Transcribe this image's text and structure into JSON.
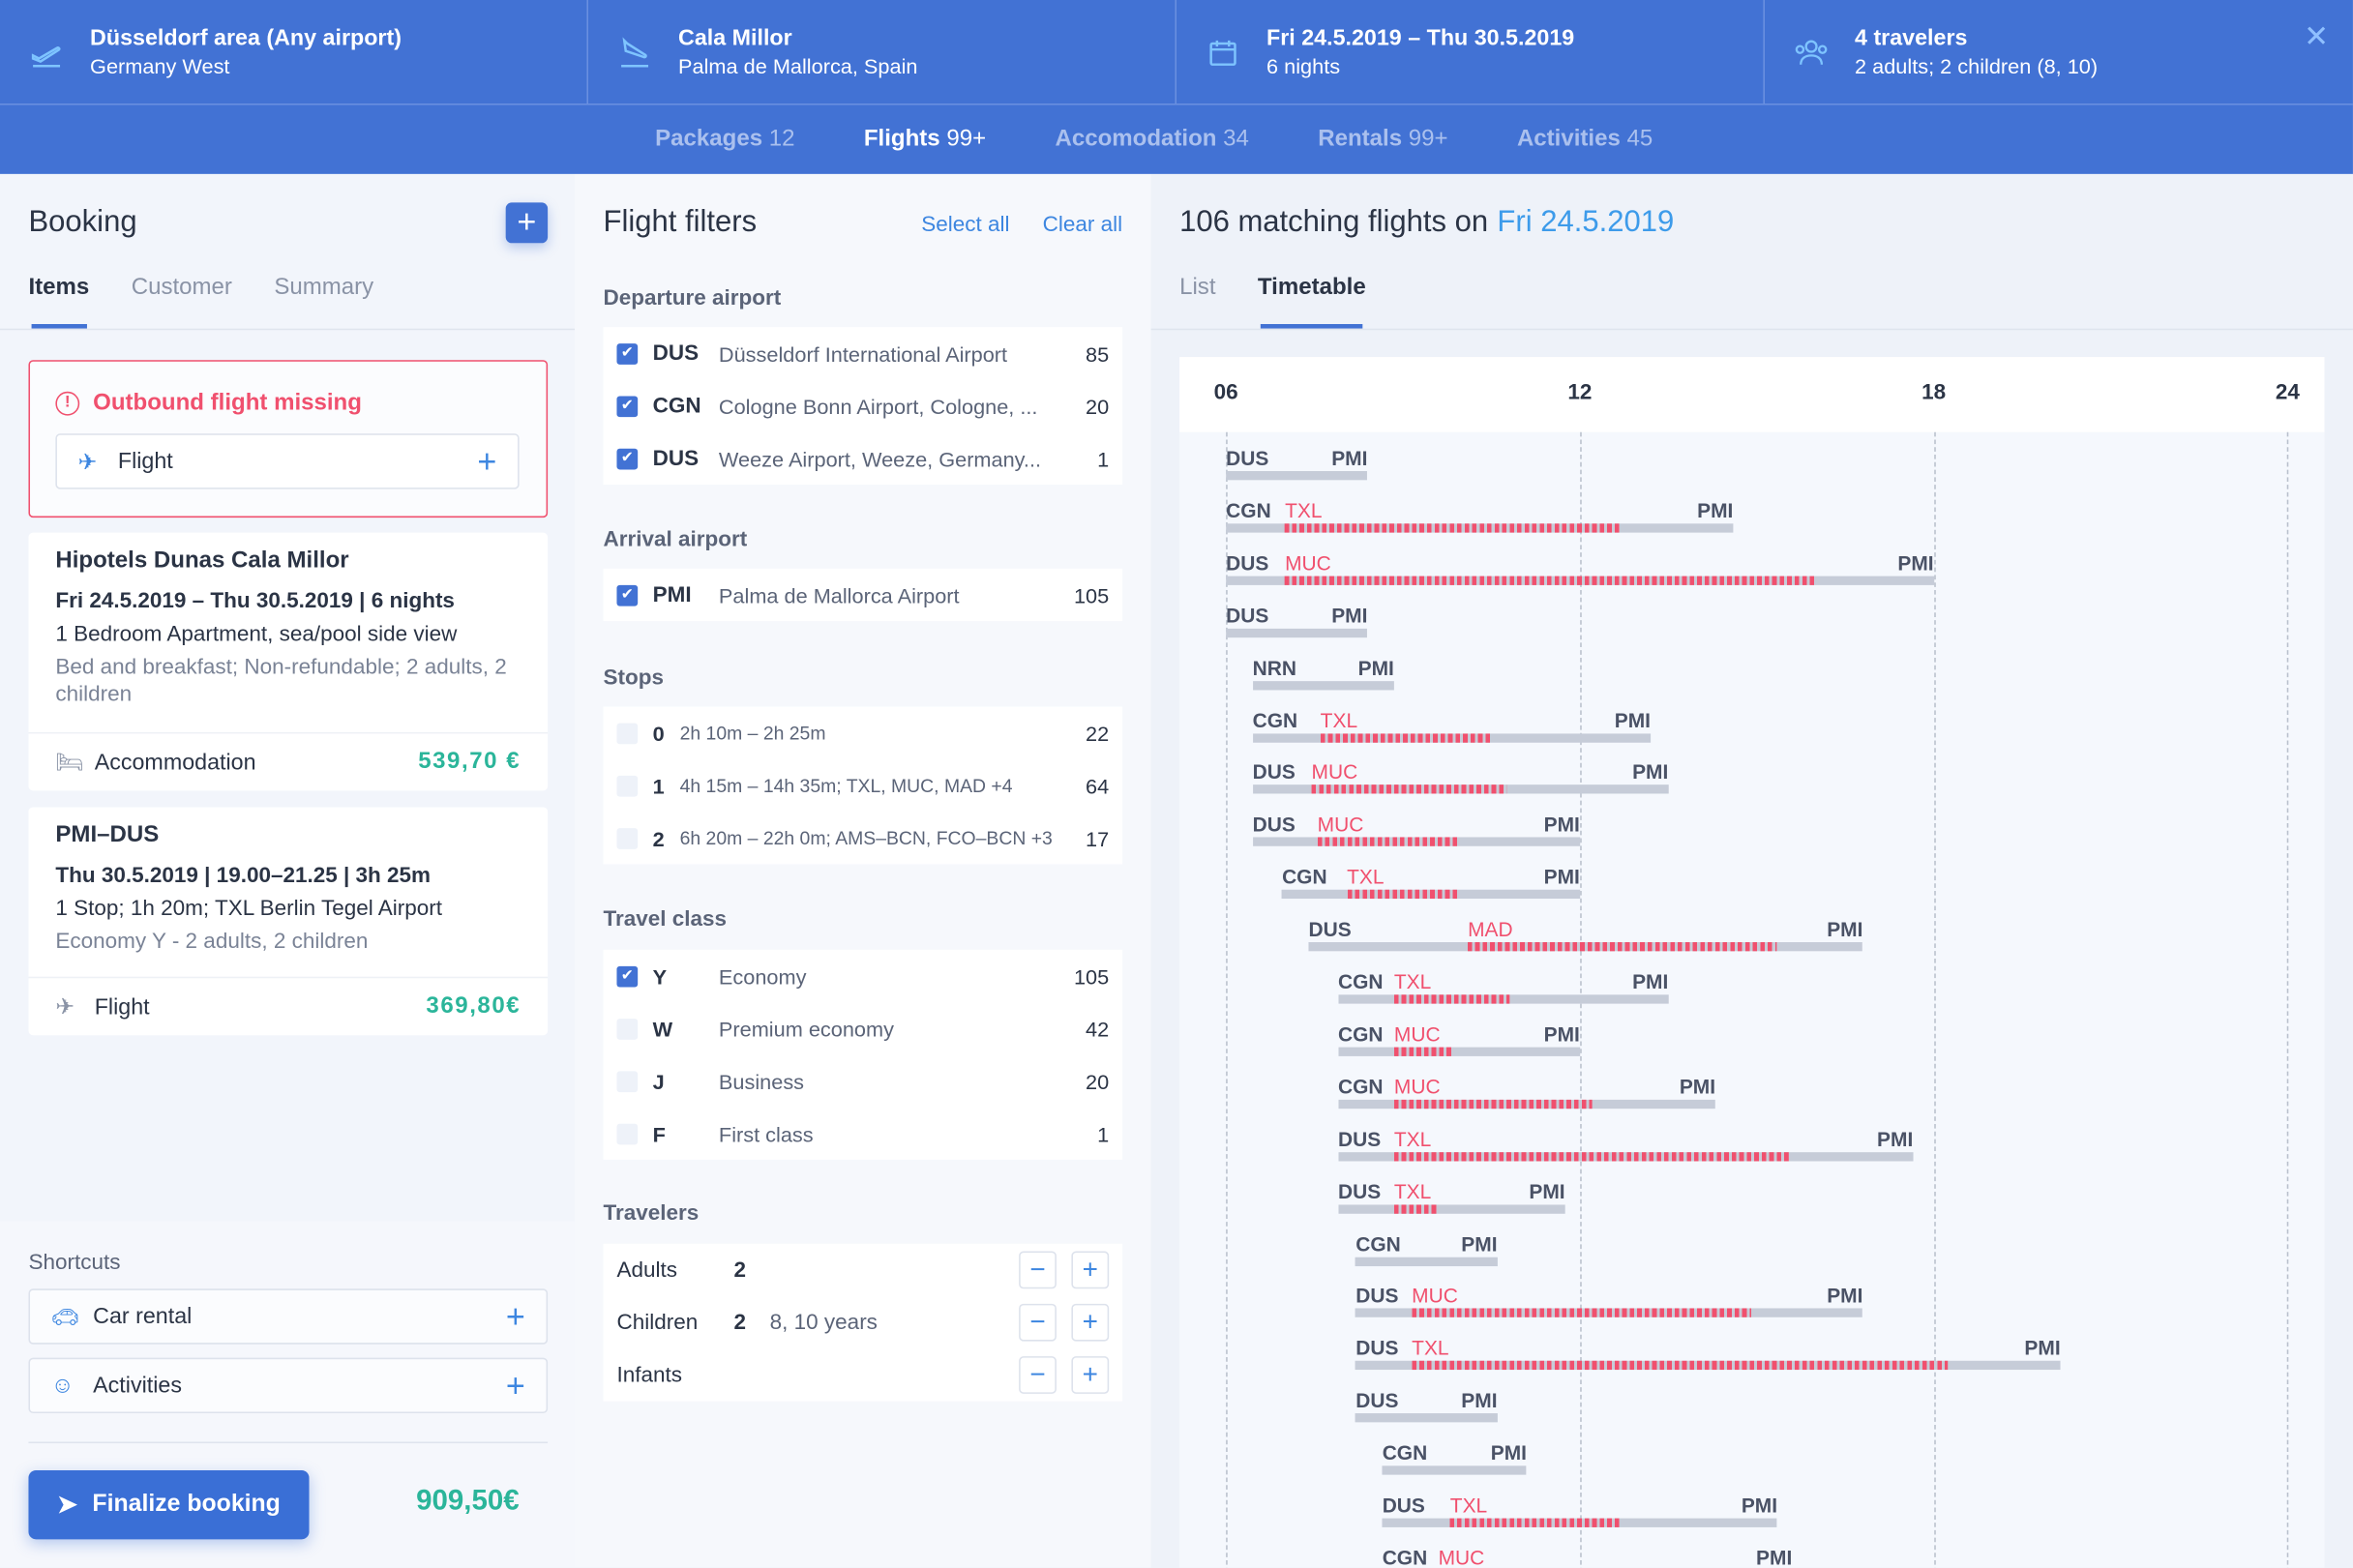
{
  "header": {
    "cells": [
      {
        "title": "Düsseldorf area (Any airport)",
        "subtitle": "Germany West",
        "icon": "takeoff-icon"
      },
      {
        "title": "Cala Millor",
        "subtitle": "Palma de Mallorca, Spain",
        "icon": "landing-icon"
      },
      {
        "title": "Fri 24.5.2019 – Thu 30.5.2019",
        "subtitle": "6 nights",
        "icon": "calendar-icon"
      },
      {
        "title": "4 travelers",
        "subtitle": "2 adults; 2 children (8, 10)",
        "icon": "people-icon"
      }
    ],
    "close": "✕",
    "nav": [
      {
        "label": "Packages",
        "count": "12"
      },
      {
        "label": "Flights",
        "count": "99+"
      },
      {
        "label": "Accomodation",
        "count": "34"
      },
      {
        "label": "Rentals",
        "count": "99+"
      },
      {
        "label": "Activities",
        "count": "45"
      }
    ]
  },
  "booking": {
    "title": "Booking",
    "add": "+",
    "tabs": [
      "Items",
      "Customer",
      "Summary"
    ],
    "alert": {
      "text": "Outbound flight missing",
      "item": "Flight",
      "plus": "+"
    },
    "hotel": {
      "name": "Hipotels Dunas Cala Millor",
      "dates": "Fri 24.5.2019 – Thu 30.5.2019 | 6 nights",
      "room": "1 Bedroom Apartment, sea/pool side view",
      "details": "Bed and breakfast; Non-refundable; 2 adults, 2 children",
      "type": "Accommodation",
      "price": "539,70 €"
    },
    "flight": {
      "route": "PMI–DUS",
      "dates": "Thu 30.5.2019 | 19.00–21.25 | 3h 25m",
      "stops": "1 Stop; 1h 20m; TXL Berlin Tegel Airport",
      "details": "Economy Y - 2 adults, 2 children",
      "type": "Flight",
      "price": "369,80€"
    },
    "shortcuts": {
      "label": "Shortcuts",
      "items": [
        "Car rental",
        "Activities"
      ],
      "plus": "+"
    },
    "finalize": "Finalize booking",
    "total": "909,50€"
  },
  "filters": {
    "title": "Flight filters",
    "select_all": "Select all",
    "clear_all": "Clear all",
    "departure": {
      "label": "Departure airport",
      "items": [
        {
          "code": "DUS",
          "name": "Düsseldorf International Airport",
          "count": "85",
          "checked": true
        },
        {
          "code": "CGN",
          "name": "Cologne Bonn Airport, Cologne, ...",
          "count": "20",
          "checked": true
        },
        {
          "code": "DUS",
          "name": "Weeze Airport, Weeze, Germany...",
          "count": "1",
          "checked": true
        }
      ]
    },
    "arrival": {
      "label": "Arrival airport",
      "items": [
        {
          "code": "PMI",
          "name": "Palma de Mallorca Airport",
          "count": "105",
          "checked": true
        }
      ]
    },
    "stops": {
      "label": "Stops",
      "items": [
        {
          "code": "0",
          "name": "2h 10m – 2h 25m",
          "count": "22"
        },
        {
          "code": "1",
          "name": "4h 15m – 14h 35m; TXL, MUC, MAD +4",
          "count": "64"
        },
        {
          "code": "2",
          "name": "6h 20m – 22h 0m;  AMS–BCN, FCO–BCN +3",
          "count": "17"
        }
      ]
    },
    "class": {
      "label": "Travel class",
      "items": [
        {
          "code": "Y",
          "name": "Economy",
          "count": "105",
          "checked": true
        },
        {
          "code": "W",
          "name": "Premium economy",
          "count": "42"
        },
        {
          "code": "J",
          "name": "Business",
          "count": "20"
        },
        {
          "code": "F",
          "name": "First class",
          "count": "1"
        }
      ]
    },
    "travelers": {
      "label": "Travelers",
      "rows": [
        {
          "label": "Adults",
          "value": "2",
          "extra": ""
        },
        {
          "label": "Children",
          "value": "2",
          "extra": "8, 10 years"
        },
        {
          "label": "Infants",
          "value": "",
          "extra": ""
        }
      ],
      "minus": "−",
      "plus": "+"
    }
  },
  "results": {
    "title": "106 matching flights on",
    "date": "Fri 24.5.2019",
    "tabs": [
      "List",
      "Timetable"
    ],
    "ticks": [
      "06",
      "12",
      "18",
      "24"
    ]
  },
  "chart_data": {
    "type": "timeline",
    "x_unit": "hour of day",
    "xlim": [
      6,
      24
    ],
    "ticks": [
      6,
      12,
      18,
      24
    ],
    "flights": [
      {
        "from": "DUS",
        "to": "PMI",
        "dep": 6.0,
        "arr": 8.4
      },
      {
        "from": "CGN",
        "via": "TXL",
        "to": "PMI",
        "dep": 6.0,
        "stop_start": 7.0,
        "stop_end": 12.7,
        "arr": 14.6
      },
      {
        "from": "DUS",
        "via": "MUC",
        "to": "PMI",
        "dep": 6.0,
        "stop_start": 7.0,
        "stop_end": 16.0,
        "arr": 18.0
      },
      {
        "from": "DUS",
        "to": "PMI",
        "dep": 6.0,
        "arr": 8.4
      },
      {
        "from": "NRN",
        "to": "PMI",
        "dep": 6.45,
        "arr": 8.85
      },
      {
        "from": "CGN",
        "via": "TXL",
        "to": "PMI",
        "dep": 6.45,
        "stop_start": 7.6,
        "stop_end": 10.5,
        "arr": 13.2
      },
      {
        "from": "DUS",
        "via": "MUC",
        "to": "PMI",
        "dep": 6.45,
        "stop_start": 7.45,
        "stop_end": 10.75,
        "arr": 13.5
      },
      {
        "from": "DUS",
        "via": "MUC",
        "to": "PMI",
        "dep": 6.45,
        "stop_start": 7.55,
        "stop_end": 9.95,
        "arr": 12.0
      },
      {
        "from": "CGN",
        "via": "TXL",
        "to": "PMI",
        "dep": 6.95,
        "stop_start": 8.05,
        "stop_end": 9.95,
        "arr": 12.0
      },
      {
        "from": "DUS",
        "via": "MAD",
        "to": "PMI",
        "dep": 7.4,
        "stop_start": 10.1,
        "stop_end": 15.35,
        "arr": 16.8
      },
      {
        "from": "CGN",
        "via": "TXL",
        "to": "PMI",
        "dep": 7.9,
        "stop_start": 8.85,
        "stop_end": 10.8,
        "arr": 13.5
      },
      {
        "from": "CGN",
        "via": "MUC",
        "to": "PMI",
        "dep": 7.9,
        "stop_start": 8.85,
        "stop_end": 9.85,
        "arr": 12.0
      },
      {
        "from": "CGN",
        "via": "MUC",
        "to": "PMI",
        "dep": 7.9,
        "stop_start": 8.85,
        "stop_end": 12.2,
        "arr": 14.3
      },
      {
        "from": "DUS",
        "via": "TXL",
        "to": "PMI",
        "dep": 7.9,
        "stop_start": 8.85,
        "stop_end": 15.55,
        "arr": 17.65
      },
      {
        "from": "DUS",
        "via": "TXL",
        "to": "PMI",
        "dep": 7.9,
        "stop_start": 8.85,
        "stop_end": 9.6,
        "arr": 11.75
      },
      {
        "from": "CGN",
        "to": "PMI",
        "dep": 8.2,
        "arr": 10.6
      },
      {
        "from": "DUS",
        "via": "MUC",
        "to": "PMI",
        "dep": 8.2,
        "stop_start": 9.15,
        "stop_end": 14.9,
        "arr": 16.8
      },
      {
        "from": "DUS",
        "via": "TXL",
        "to": "PMI",
        "dep": 8.2,
        "stop_start": 9.15,
        "stop_end": 18.25,
        "arr": 20.15
      },
      {
        "from": "DUS",
        "to": "PMI",
        "dep": 8.2,
        "arr": 10.6
      },
      {
        "from": "CGN",
        "to": "PMI",
        "dep": 8.65,
        "arr": 11.1
      },
      {
        "from": "DUS",
        "via": "TXL",
        "to": "PMI",
        "dep": 8.65,
        "stop_start": 9.8,
        "stop_end": 12.7,
        "arr": 15.35
      },
      {
        "from": "CGN",
        "via": "MUC",
        "to": "PMI",
        "dep": 8.65,
        "stop_start": 9.6,
        "stop_end": 12.5,
        "arr": 15.6
      }
    ]
  }
}
